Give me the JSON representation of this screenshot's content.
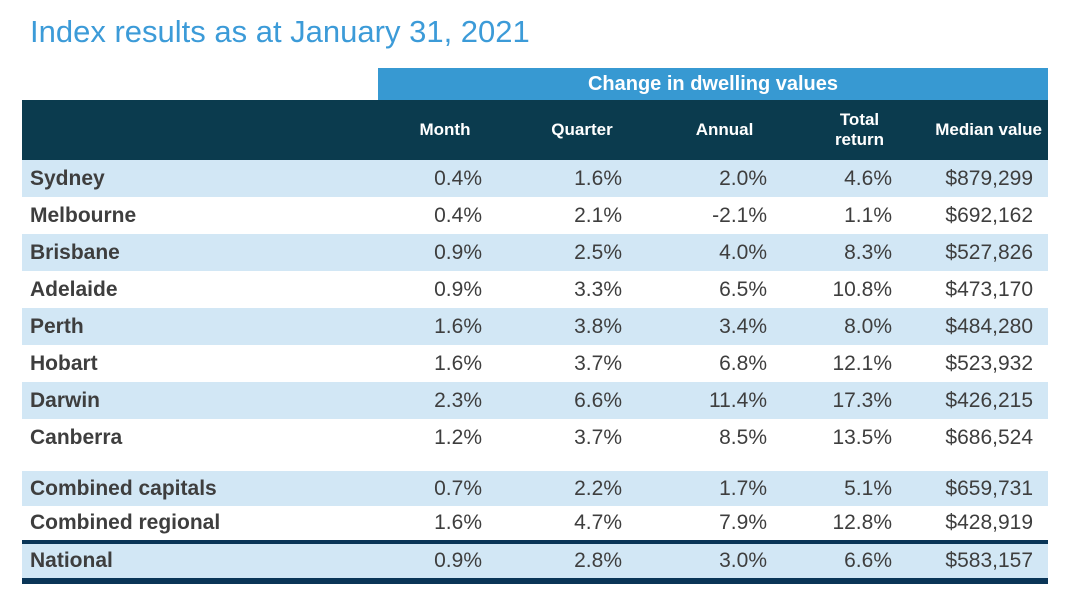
{
  "title": "Index results as at January 31, 2021",
  "colors": {
    "title_blue": "#3C9BD8",
    "band_blue": "#3799D2",
    "header_dark": "#0B3B4E",
    "row_light_blue": "#D2E7F5",
    "border_navy": "#0A3557",
    "text_dark": "#3E3E3E"
  },
  "table": {
    "band_header": "Change in dwelling values",
    "columns": {
      "month": "Month",
      "quarter": "Quarter",
      "annual": "Annual",
      "total_return": "Total return",
      "median_value": "Median value"
    },
    "rows": [
      {
        "label": "Sydney",
        "month": "0.4%",
        "quarter": "1.6%",
        "annual": "2.0%",
        "total_return": "4.6%",
        "median_value": "$879,299"
      },
      {
        "label": "Melbourne",
        "month": "0.4%",
        "quarter": "2.1%",
        "annual": "-2.1%",
        "total_return": "1.1%",
        "median_value": "$692,162"
      },
      {
        "label": "Brisbane",
        "month": "0.9%",
        "quarter": "2.5%",
        "annual": "4.0%",
        "total_return": "8.3%",
        "median_value": "$527,826"
      },
      {
        "label": "Adelaide",
        "month": "0.9%",
        "quarter": "3.3%",
        "annual": "6.5%",
        "total_return": "10.8%",
        "median_value": "$473,170"
      },
      {
        "label": "Perth",
        "month": "1.6%",
        "quarter": "3.8%",
        "annual": "3.4%",
        "total_return": "8.0%",
        "median_value": "$484,280"
      },
      {
        "label": "Hobart",
        "month": "1.6%",
        "quarter": "3.7%",
        "annual": "6.8%",
        "total_return": "12.1%",
        "median_value": "$523,932"
      },
      {
        "label": "Darwin",
        "month": "2.3%",
        "quarter": "6.6%",
        "annual": "11.4%",
        "total_return": "17.3%",
        "median_value": "$426,215"
      },
      {
        "label": "Canberra",
        "month": "1.2%",
        "quarter": "3.7%",
        "annual": "8.5%",
        "total_return": "13.5%",
        "median_value": "$686,524"
      }
    ],
    "aggregate_rows": [
      {
        "label": "Combined capitals",
        "month": "0.7%",
        "quarter": "2.2%",
        "annual": "1.7%",
        "total_return": "5.1%",
        "median_value": "$659,731"
      },
      {
        "label": "Combined regional",
        "month": "1.6%",
        "quarter": "4.7%",
        "annual": "7.9%",
        "total_return": "12.8%",
        "median_value": "$428,919"
      }
    ],
    "national_row": {
      "label": "National",
      "month": "0.9%",
      "quarter": "2.8%",
      "annual": "3.0%",
      "total_return": "6.6%",
      "median_value": "$583,157"
    }
  },
  "chart_data": {
    "type": "table",
    "title": "Index results as at January 31, 2021",
    "group_header": "Change in dwelling values (Month, Quarter, Annual, Total return)",
    "columns": [
      "Month %",
      "Quarter %",
      "Annual %",
      "Total return %",
      "Median value $"
    ],
    "rows": [
      {
        "label": "Sydney",
        "month": 0.4,
        "quarter": 1.6,
        "annual": 2.0,
        "total_return": 4.6,
        "median_value": 879299
      },
      {
        "label": "Melbourne",
        "month": 0.4,
        "quarter": 2.1,
        "annual": -2.1,
        "total_return": 1.1,
        "median_value": 692162
      },
      {
        "label": "Brisbane",
        "month": 0.9,
        "quarter": 2.5,
        "annual": 4.0,
        "total_return": 8.3,
        "median_value": 527826
      },
      {
        "label": "Adelaide",
        "month": 0.9,
        "quarter": 3.3,
        "annual": 6.5,
        "total_return": 10.8,
        "median_value": 473170
      },
      {
        "label": "Perth",
        "month": 1.6,
        "quarter": 3.8,
        "annual": 3.4,
        "total_return": 8.0,
        "median_value": 484280
      },
      {
        "label": "Hobart",
        "month": 1.6,
        "quarter": 3.7,
        "annual": 6.8,
        "total_return": 12.1,
        "median_value": 523932
      },
      {
        "label": "Darwin",
        "month": 2.3,
        "quarter": 6.6,
        "annual": 11.4,
        "total_return": 17.3,
        "median_value": 426215
      },
      {
        "label": "Canberra",
        "month": 1.2,
        "quarter": 3.7,
        "annual": 8.5,
        "total_return": 13.5,
        "median_value": 686524
      },
      {
        "label": "Combined capitals",
        "month": 0.7,
        "quarter": 2.2,
        "annual": 1.7,
        "total_return": 5.1,
        "median_value": 659731
      },
      {
        "label": "Combined regional",
        "month": 1.6,
        "quarter": 4.7,
        "annual": 7.9,
        "total_return": 12.8,
        "median_value": 428919
      },
      {
        "label": "National",
        "month": 0.9,
        "quarter": 2.8,
        "annual": 3.0,
        "total_return": 6.6,
        "median_value": 583157
      }
    ]
  }
}
